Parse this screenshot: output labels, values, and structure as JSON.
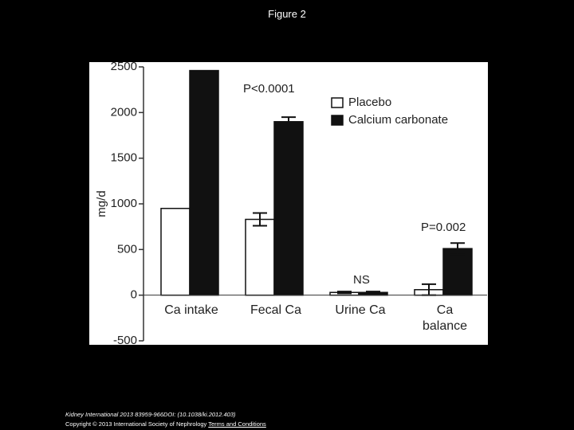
{
  "slide_title": "Figure 2",
  "footer": {
    "citation": "Kidney International 2013 83959-966DOI: (10.1038/ki.2012.403)",
    "copyright": "Copyright © 2013 International Society of Nephrology",
    "link": "Terms and Conditions"
  },
  "chart_data": {
    "type": "bar",
    "y_label": "mg/d",
    "categories": [
      "Ca intake",
      "Fecal Ca",
      "Urine Ca",
      "Ca balance"
    ],
    "series": [
      {
        "name": "Placebo",
        "color": "#ffffff",
        "values": [
          950,
          830,
          30,
          60
        ],
        "errors": [
          null,
          70,
          10,
          60
        ]
      },
      {
        "name": "Calcium carbonate",
        "color": "#111111",
        "values": [
          2460,
          1900,
          30,
          510
        ],
        "errors": [
          null,
          50,
          10,
          60
        ]
      }
    ],
    "annotations": [
      "P<0.0001",
      "NS",
      "P=0.002"
    ],
    "ylim": [
      -500,
      2500
    ],
    "yticks": [
      -500,
      0,
      500,
      1000,
      1500,
      2000,
      2500
    ],
    "legend": "upper right"
  }
}
